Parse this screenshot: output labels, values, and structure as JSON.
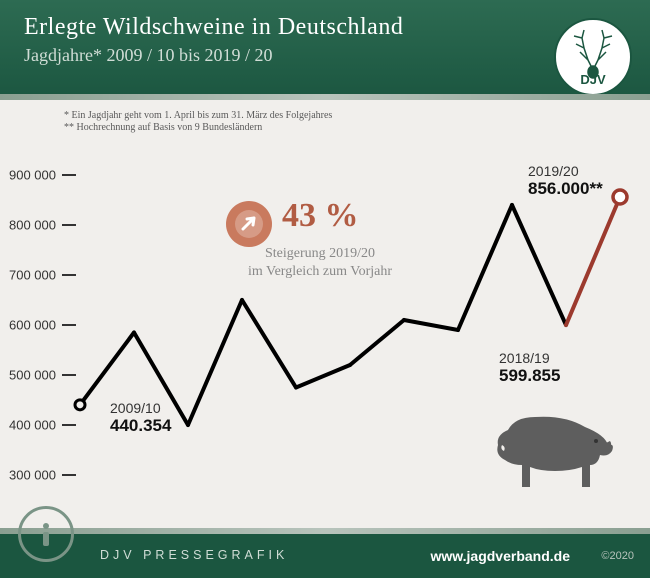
{
  "header": {
    "title": "Erlegte Wildschweine in Deutschland",
    "subtitle": "Jagdjahre* 2009 / 10 bis 2019 / 20",
    "logo_text": "DJV"
  },
  "footnotes": {
    "line1": "* Ein Jagdjahr geht vom 1. April bis zum 31. März des Folgejahres",
    "line2": "** Hochrechnung auf Basis von 9 Bundesländern"
  },
  "chart": {
    "type": "line",
    "ylabel_fontsize": 13,
    "ylim": [
      280000,
      920000
    ],
    "yticks": [
      300000,
      400000,
      500000,
      600000,
      700000,
      800000,
      900000
    ],
    "ytick_labels": [
      "300 000",
      "400 000",
      "500 000",
      "600 000",
      "700 000",
      "800 000",
      "900 000"
    ],
    "x_points": 11,
    "values": [
      440354,
      585000,
      400000,
      650000,
      475000,
      520000,
      610000,
      590000,
      840000,
      599855,
      856000
    ],
    "segment_colors": [
      "#000000",
      "#000000",
      "#000000",
      "#000000",
      "#000000",
      "#000000",
      "#000000",
      "#000000",
      "#000000",
      "#9c3a2e"
    ],
    "line_width": 4,
    "background_color": "#f1efec",
    "last_point_marker": {
      "fill": "#ffffff",
      "stroke": "#9c3a2e",
      "r": 7,
      "sw": 3.5
    },
    "percent_badge": {
      "value": "43 %",
      "color": "#b15c43",
      "badge_bg": "#c97a5e",
      "desc_line1": "Steigerung 2019/20",
      "desc_line2": "im Vergleich zum Vorjahr"
    },
    "labels": [
      {
        "year": "2009/10",
        "value": "440.354",
        "pos": "start"
      },
      {
        "year": "2018/19",
        "value": "599.855",
        "pos": "n9"
      },
      {
        "year": "2019/20",
        "value": "856.000**",
        "pos": "end"
      }
    ]
  },
  "footer": {
    "mid": "DJV PRESSEGRAFIK",
    "url": "www.jagdverband.de",
    "copyright": "©2020"
  },
  "colors": {
    "header_bg": "#1b5640",
    "body_bg": "#f1efec",
    "accent_line": "#9c3a2e"
  }
}
